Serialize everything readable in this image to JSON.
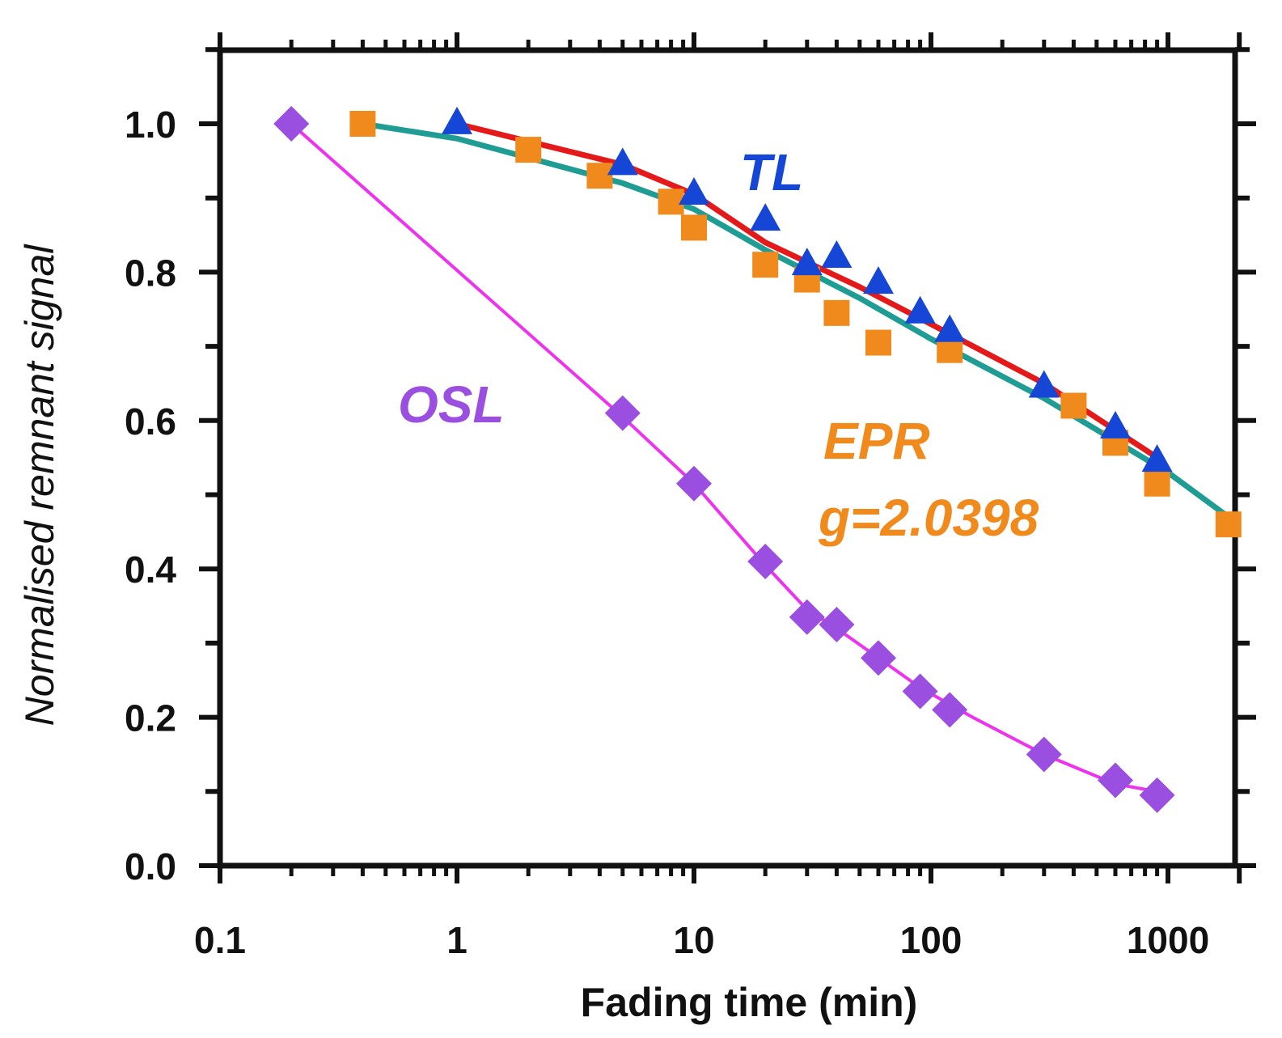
{
  "chart_data": {
    "type": "scatter",
    "xlabel": "Fading time (min)",
    "ylabel": "Normalised  remnant signal",
    "xscale": "log",
    "xlim": [
      0.1,
      2000
    ],
    "ylim": [
      0.0,
      1.1
    ],
    "x_ticks": [
      {
        "value": 0.1,
        "label": "0.1"
      },
      {
        "value": 1,
        "label": "1"
      },
      {
        "value": 10,
        "label": "10"
      },
      {
        "value": 100,
        "label": "100"
      },
      {
        "value": 1000,
        "label": "1000"
      }
    ],
    "y_ticks": [
      {
        "value": 0.0,
        "label": "0.0"
      },
      {
        "value": 0.2,
        "label": "0.2"
      },
      {
        "value": 0.4,
        "label": "0.4"
      },
      {
        "value": 0.6,
        "label": "0.6"
      },
      {
        "value": 0.8,
        "label": "0.8"
      },
      {
        "value": 1.0,
        "label": "1.0"
      }
    ],
    "grid": false,
    "legend": "none",
    "series": [
      {
        "name": "OSL",
        "label_value": "OSL",
        "marker": "diamond",
        "color": "#9b4fe0",
        "line_color": "#ee33ee",
        "x": [
          0.2,
          5,
          10,
          20,
          30,
          40,
          60,
          90,
          120,
          300,
          600,
          900
        ],
        "y": [
          1.0,
          0.61,
          0.515,
          0.41,
          0.335,
          0.325,
          0.28,
          0.235,
          0.21,
          0.15,
          0.115,
          0.095
        ],
        "fit_x": [
          0.2,
          5,
          10,
          20,
          30,
          40,
          60,
          90,
          150,
          300,
          600,
          900
        ],
        "fit_y": [
          1.0,
          0.605,
          0.515,
          0.405,
          0.345,
          0.32,
          0.28,
          0.24,
          0.2,
          0.15,
          0.11,
          0.1
        ]
      },
      {
        "name": "TL",
        "label_value": "TL",
        "marker": "triangle",
        "color": "#1546d6",
        "line_color": "#e41a1a",
        "x": [
          1,
          5,
          10,
          20,
          30,
          40,
          60,
          90,
          120,
          300,
          600,
          900
        ],
        "y": [
          1.0,
          0.945,
          0.905,
          0.87,
          0.81,
          0.82,
          0.785,
          0.745,
          0.72,
          0.645,
          0.59,
          0.545
        ],
        "fit_x": [
          1,
          5,
          10,
          20,
          50,
          100,
          300,
          900
        ],
        "fit_y": [
          1.0,
          0.945,
          0.905,
          0.84,
          0.78,
          0.73,
          0.65,
          0.55
        ]
      },
      {
        "name": "EPR g=2.0398",
        "label_value": "EPR",
        "label_value_2": "g=2.0398",
        "marker": "square",
        "color": "#f08a1c",
        "line_color": "#1f9c94",
        "x": [
          0.4,
          2,
          4,
          8,
          10,
          20,
          30,
          40,
          60,
          120,
          400,
          600,
          900,
          1800
        ],
        "y": [
          1.0,
          0.965,
          0.93,
          0.895,
          0.86,
          0.81,
          0.79,
          0.745,
          0.705,
          0.695,
          0.62,
          0.57,
          0.515,
          0.46
        ],
        "fit_x": [
          0.4,
          1,
          5,
          10,
          20,
          50,
          100,
          300,
          1000,
          1800
        ],
        "fit_y": [
          1.0,
          0.98,
          0.92,
          0.885,
          0.83,
          0.765,
          0.71,
          0.63,
          0.53,
          0.47
        ]
      }
    ]
  }
}
